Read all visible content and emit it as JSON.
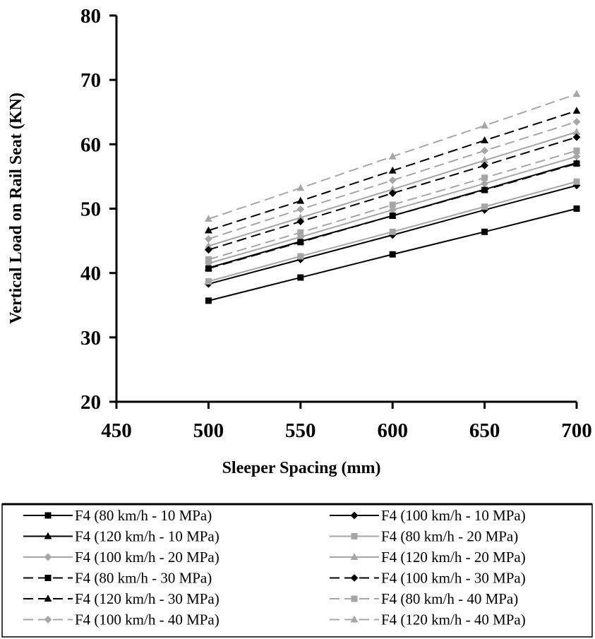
{
  "chart_data": {
    "type": "line",
    "title": "",
    "xlabel": "Sleeper Spacing (mm)",
    "ylabel": "Vertical Load on Rail Seat (KN)",
    "xlim": [
      450,
      700
    ],
    "ylim": [
      20,
      80
    ],
    "xticks": [
      450,
      500,
      550,
      600,
      650,
      700
    ],
    "yticks": [
      20,
      30,
      40,
      50,
      60,
      70,
      80
    ],
    "grid": false,
    "legend_position": "bottom",
    "x": [
      500,
      550,
      600,
      650,
      700
    ],
    "series": [
      {
        "name": "F4 (80 km/h - 10 MPa)",
        "values": [
          35.7,
          39.3,
          42.9,
          46.4,
          50.0
        ],
        "color": "#000000",
        "dash": "solid",
        "marker": "square"
      },
      {
        "name": "F4 (100 km/h - 10 MPa)",
        "values": [
          38.3,
          42.1,
          45.9,
          49.8,
          53.6
        ],
        "color": "#000000",
        "dash": "solid",
        "marker": "diamond"
      },
      {
        "name": "F4 (120 km/h - 10 MPa)",
        "values": [
          40.8,
          44.9,
          48.9,
          53.0,
          57.1
        ],
        "color": "#000000",
        "dash": "solid",
        "marker": "triangle"
      },
      {
        "name": "F4 (80 km/h - 20 MPa)",
        "values": [
          38.7,
          42.6,
          46.4,
          50.3,
          54.2
        ],
        "color": "#a6a6a6",
        "dash": "solid",
        "marker": "square"
      },
      {
        "name": "F4 (100 km/h - 20 MPa)",
        "values": [
          41.5,
          45.6,
          49.8,
          53.9,
          58.1
        ],
        "color": "#a6a6a6",
        "dash": "solid",
        "marker": "diamond"
      },
      {
        "name": "F4 (120 km/h - 20 MPa)",
        "values": [
          44.2,
          48.6,
          53.0,
          57.5,
          61.9
        ],
        "color": "#a6a6a6",
        "dash": "solid",
        "marker": "triangle"
      },
      {
        "name": "F4 (80 km/h - 30 MPa)",
        "values": [
          40.7,
          44.8,
          48.9,
          52.9,
          57.0
        ],
        "color": "#000000",
        "dash": "dashed",
        "marker": "square"
      },
      {
        "name": "F4 (100 km/h - 30 MPa)",
        "values": [
          43.6,
          48.0,
          52.4,
          56.7,
          61.1
        ],
        "color": "#000000",
        "dash": "dashed",
        "marker": "diamond"
      },
      {
        "name": "F4 (120 km/h - 30 MPa)",
        "values": [
          46.6,
          51.2,
          55.9,
          60.6,
          65.2
        ],
        "color": "#000000",
        "dash": "dashed",
        "marker": "triangle"
      },
      {
        "name": "F4 (80 km/h - 40 MPa)",
        "values": [
          42.1,
          46.3,
          50.6,
          54.8,
          59.0
        ],
        "color": "#a6a6a6",
        "dash": "dashed",
        "marker": "square"
      },
      {
        "name": "F4 (100 km/h - 40 MPa)",
        "values": [
          45.3,
          49.9,
          54.4,
          59.0,
          63.5
        ],
        "color": "#a6a6a6",
        "dash": "dashed",
        "marker": "diamond"
      },
      {
        "name": "F4 (120 km/h - 40 MPa)",
        "values": [
          48.4,
          53.2,
          58.1,
          62.9,
          67.8
        ],
        "color": "#a6a6a6",
        "dash": "dashed",
        "marker": "triangle"
      }
    ]
  }
}
